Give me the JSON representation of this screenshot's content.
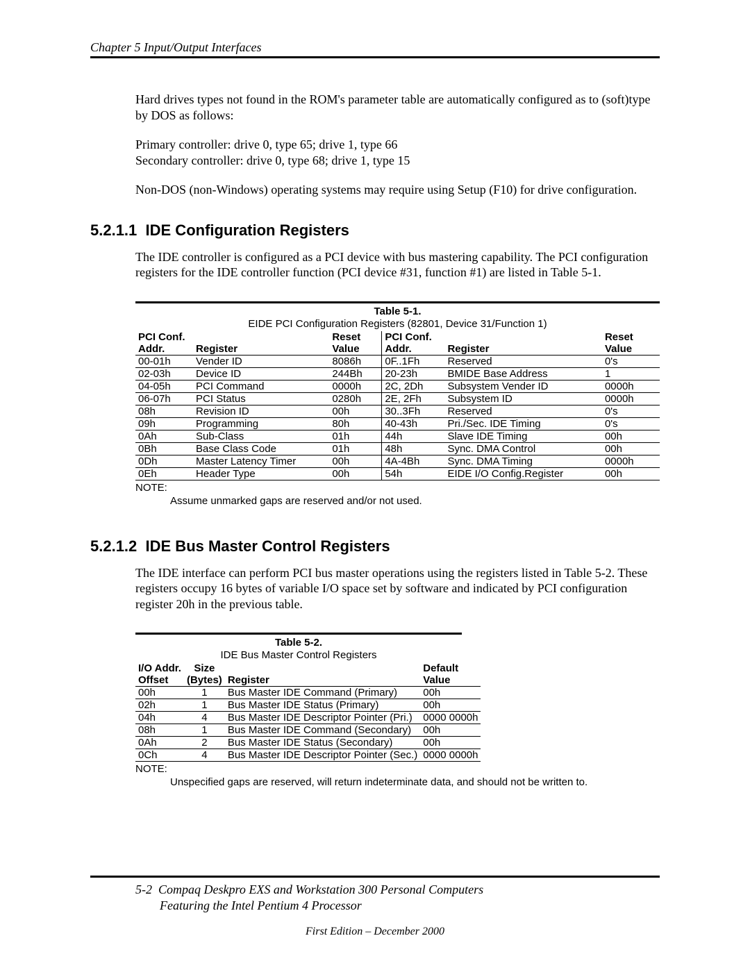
{
  "header": {
    "running": "Chapter 5  Input/Output Interfaces"
  },
  "intro": {
    "p1": "Hard drives types not found in the ROM's parameter table are automatically configured as to (soft)type by DOS as follows:",
    "p2": "Primary controller: drive 0, type 65;  drive 1, type 66",
    "p3": "Secondary controller: drive 0, type 68; drive 1, type 15",
    "p4": "Non-DOS (non-Windows) operating systems may require using Setup (F10) for drive configuration."
  },
  "sec1": {
    "number": "5.2.1.1",
    "title": "IDE Configuration Registers",
    "body": "The IDE controller is configured as a PCI device with bus mastering capability. The PCI configuration registers for the IDE controller function (PCI device #31, function #1) are listed in Table 5-1."
  },
  "table1": {
    "label": "Table 5-1.",
    "caption": "EIDE PCI Configuration Registers (82801, Device 31/Function 1)",
    "head": {
      "addr1": "PCI Conf.",
      "addr2": "Addr.",
      "reg": "Register",
      "val1": "Reset",
      "val2": "Value"
    },
    "rows": [
      {
        "a": "00-01h",
        "r": "Vender ID",
        "v": "8086h",
        "a2": "0F..1Fh",
        "r2": "Reserved",
        "v2": "0's"
      },
      {
        "a": "02-03h",
        "r": "Device ID",
        "v": "244Bh",
        "a2": "20-23h",
        "r2": "BMIDE Base Address",
        "v2": "1"
      },
      {
        "a": "04-05h",
        "r": "PCI Command",
        "v": "0000h",
        "a2": "2C, 2Dh",
        "r2": "Subsystem Vender ID",
        "v2": "0000h"
      },
      {
        "a": "06-07h",
        "r": "PCI Status",
        "v": "0280h",
        "a2": "2E, 2Fh",
        "r2": "Subsystem ID",
        "v2": "0000h"
      },
      {
        "a": "08h",
        "r": "Revision ID",
        "v": "00h",
        "a2": "30..3Fh",
        "r2": "Reserved",
        "v2": "0's"
      },
      {
        "a": "09h",
        "r": "Programming",
        "v": "80h",
        "a2": "40-43h",
        "r2": "Pri./Sec. IDE Timing",
        "v2": "0's"
      },
      {
        "a": "0Ah",
        "r": "Sub-Class",
        "v": "01h",
        "a2": "44h",
        "r2": "Slave IDE Timing",
        "v2": "00h"
      },
      {
        "a": "0Bh",
        "r": "Base Class Code",
        "v": "01h",
        "a2": "48h",
        "r2": "Sync. DMA Control",
        "v2": "00h"
      },
      {
        "a": "0Dh",
        "r": "Master Latency Timer",
        "v": "00h",
        "a2": "4A-4Bh",
        "r2": "Sync. DMA Timing",
        "v2": "0000h"
      },
      {
        "a": "0Eh",
        "r": "Header Type",
        "v": "00h",
        "a2": "54h",
        "r2": "EIDE I/O Config.Register",
        "v2": "00h"
      }
    ],
    "note_label": "NOTE:",
    "note": "Assume unmarked gaps are reserved and/or not used."
  },
  "sec2": {
    "number": "5.2.1.2",
    "title": "IDE Bus Master Control Registers",
    "body": "The IDE interface can perform PCI bus master operations using the registers listed in Table 5-2. These registers occupy 16 bytes of variable I/O space set by software and indicated by PCI configuration register 20h in the previous table."
  },
  "table2": {
    "label": "Table 5-2.",
    "caption": "IDE Bus Master Control Registers",
    "head": {
      "off1": "I/O Addr.",
      "off2": "Offset",
      "sz1": "Size",
      "sz2": "(Bytes)",
      "reg": "Register",
      "dv1": "Default",
      "dv2": "Value"
    },
    "rows": [
      {
        "o": "00h",
        "s": "1",
        "r": "Bus Master IDE Command (Primary)",
        "d": "00h"
      },
      {
        "o": "02h",
        "s": "1",
        "r": "Bus Master IDE Status (Primary)",
        "d": "00h"
      },
      {
        "o": "04h",
        "s": "4",
        "r": "Bus Master IDE Descriptor Pointer (Pri.)",
        "d": "0000 0000h"
      },
      {
        "o": "08h",
        "s": "1",
        "r": "Bus Master IDE Command (Secondary)",
        "d": "00h"
      },
      {
        "o": "0Ah",
        "s": "2",
        "r": "Bus Master IDE Status (Secondary)",
        "d": "00h"
      },
      {
        "o": "0Ch",
        "s": "4",
        "r": "Bus Master IDE Descriptor Pointer (Sec.)",
        "d": "0000 0000h"
      }
    ],
    "note_label": "NOTE:",
    "note": "Unspecified gaps are reserved, will return indeterminate data, and should not be written to."
  },
  "footer": {
    "page": "5-2",
    "line1": "Compaq Deskpro EXS and Workstation 300 Personal Computers",
    "line2": "Featuring the Intel Pentium 4 Processor",
    "edition": "First Edition – December 2000"
  }
}
